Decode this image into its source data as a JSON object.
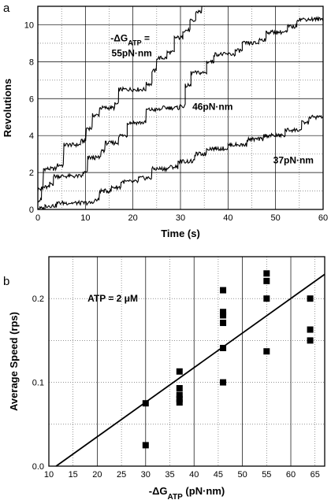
{
  "chart_data": [
    {
      "panel_label": "a",
      "type": "line",
      "xlabel": "Time (s)",
      "ylabel": "Revolutions",
      "xlim": [
        0,
        60
      ],
      "ylim": [
        0,
        11
      ],
      "xticks": [
        0,
        10,
        20,
        30,
        40,
        50,
        60
      ],
      "yticks": [
        0,
        2,
        4,
        6,
        8,
        10
      ],
      "grid": "major solid, minor dotted",
      "annotations": [
        {
          "text_parts": [
            "-ΔG",
            "ATP",
            " ="
          ],
          "x": 15.3,
          "y": 9.1
        },
        {
          "text": "55pN·nm",
          "x": 15.5,
          "y": 8.3
        },
        {
          "text": "46pN·nm",
          "x": 32.5,
          "y": 5.4
        },
        {
          "text": "37pN·nm",
          "x": 49.5,
          "y": 2.5
        }
      ],
      "series": [
        {
          "name": "55pN·nm",
          "steps": [
            [
              0,
              1.1
            ],
            [
              1.2,
              2.2
            ],
            [
              4.0,
              2.4
            ],
            [
              5.5,
              3.5
            ],
            [
              9.0,
              3.7
            ],
            [
              10.2,
              4.4
            ],
            [
              11.5,
              5.1
            ],
            [
              13.0,
              5.5
            ],
            [
              16.2,
              5.7
            ],
            [
              17.0,
              6.5
            ],
            [
              22.8,
              6.8
            ],
            [
              24.0,
              7.5
            ],
            [
              25.0,
              8.2
            ],
            [
              27.2,
              8.5
            ],
            [
              28.7,
              9.3
            ],
            [
              30.5,
              9.7
            ],
            [
              32.0,
              10.2
            ],
            [
              33.2,
              10.7
            ],
            [
              34.5,
              11.0
            ],
            [
              35.0,
              11.0
            ]
          ]
        },
        {
          "name": "46pN·nm",
          "steps": [
            [
              0,
              0.5
            ],
            [
              0.8,
              1.2
            ],
            [
              2.5,
              1.4
            ],
            [
              3.3,
              1.8
            ],
            [
              9.5,
              2.0
            ],
            [
              10.5,
              2.8
            ],
            [
              13.3,
              3.2
            ],
            [
              14.2,
              3.6
            ],
            [
              17.0,
              4.0
            ],
            [
              18.8,
              4.7
            ],
            [
              22.8,
              5.4
            ],
            [
              26.0,
              5.5
            ],
            [
              29.8,
              5.6
            ],
            [
              31.0,
              6.7
            ],
            [
              32.2,
              7.4
            ],
            [
              35.5,
              8.0
            ],
            [
              37.0,
              8.4
            ],
            [
              41.5,
              8.6
            ],
            [
              43.0,
              9.0
            ],
            [
              46.5,
              9.2
            ],
            [
              48.0,
              9.6
            ],
            [
              52.5,
              9.9
            ],
            [
              54.5,
              10.3
            ],
            [
              60.0,
              10.4
            ]
          ]
        },
        {
          "name": "37pN·nm",
          "steps": [
            [
              0,
              0.05
            ],
            [
              1.5,
              0.2
            ],
            [
              4.0,
              0.35
            ],
            [
              11.8,
              0.5
            ],
            [
              13.0,
              1.0
            ],
            [
              15.5,
              1.2
            ],
            [
              17.5,
              1.5
            ],
            [
              21.2,
              1.7
            ],
            [
              24.0,
              2.2
            ],
            [
              27.5,
              2.3
            ],
            [
              29.5,
              2.6
            ],
            [
              33.0,
              3.0
            ],
            [
              35.5,
              3.3
            ],
            [
              40.0,
              3.5
            ],
            [
              44.0,
              3.8
            ],
            [
              47.5,
              4.0
            ],
            [
              52.0,
              4.3
            ],
            [
              55.5,
              4.7
            ],
            [
              57.0,
              5.0
            ],
            [
              60.0,
              5.1
            ]
          ]
        }
      ]
    },
    {
      "panel_label": "b",
      "type": "scatter",
      "xlabel_parts": [
        "-ΔG",
        "ATP",
        " (pN·nm)"
      ],
      "ylabel": "Average Speed (rps)",
      "xlim": [
        10,
        67
      ],
      "ylim": [
        0.0,
        0.25
      ],
      "xticks": [
        10,
        15,
        20,
        25,
        30,
        35,
        40,
        45,
        50,
        55,
        60,
        65
      ],
      "yticks": [
        "0.0",
        "0.1",
        "0.2"
      ],
      "grid": "vertical every 5 pN·nm, horizontal every 0.05 rps dotted",
      "annotation": "ATP = 2 μM",
      "points": [
        {
          "x": 30,
          "y": 0.075
        },
        {
          "x": 30,
          "y": 0.025
        },
        {
          "x": 37,
          "y": 0.113
        },
        {
          "x": 37,
          "y": 0.093
        },
        {
          "x": 37,
          "y": 0.085
        },
        {
          "x": 37,
          "y": 0.08
        },
        {
          "x": 37,
          "y": 0.076
        },
        {
          "x": 46,
          "y": 0.21
        },
        {
          "x": 46,
          "y": 0.184
        },
        {
          "x": 46,
          "y": 0.18
        },
        {
          "x": 46,
          "y": 0.171
        },
        {
          "x": 46,
          "y": 0.141
        },
        {
          "x": 46,
          "y": 0.1
        },
        {
          "x": 55,
          "y": 0.23
        },
        {
          "x": 55,
          "y": 0.221
        },
        {
          "x": 55,
          "y": 0.2
        },
        {
          "x": 55,
          "y": 0.137
        },
        {
          "x": 64,
          "y": 0.2
        },
        {
          "x": 64,
          "y": 0.163
        },
        {
          "x": 64,
          "y": 0.15
        }
      ],
      "fit_line": {
        "x": [
          11.5,
          67
        ],
        "y": [
          0.0,
          0.229
        ]
      }
    }
  ]
}
